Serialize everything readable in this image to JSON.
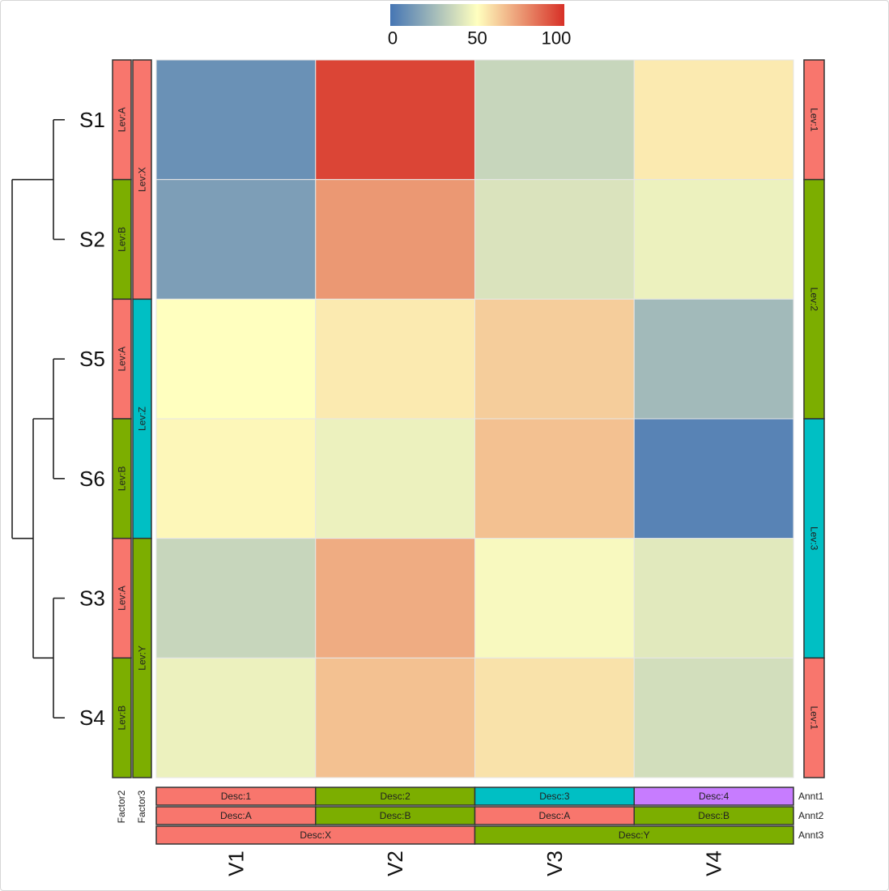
{
  "chart_data": {
    "type": "heatmap",
    "rows": [
      "S1",
      "S2",
      "S5",
      "S6",
      "S3",
      "S4"
    ],
    "columns": [
      "V1",
      "V2",
      "V3",
      "V4"
    ],
    "values": [
      [
        10,
        95,
        35,
        55
      ],
      [
        15,
        75,
        40,
        45
      ],
      [
        50,
        55,
        62,
        25
      ],
      [
        52,
        45,
        65,
        5
      ],
      [
        35,
        70,
        48,
        42
      ],
      [
        45,
        65,
        57,
        38
      ]
    ],
    "color_scale": {
      "min": 0,
      "mid": 50,
      "max": 100,
      "low_color": "#4575b4",
      "mid_color": "#ffffbf",
      "high_color": "#d73027",
      "ticks": [
        "0",
        "50",
        "100"
      ]
    },
    "row_annotations": {
      "Factor2": [
        "Lev:A",
        "Lev:B",
        "Lev:A",
        "Lev:B",
        "Lev:A",
        "Lev:B"
      ],
      "Factor3": [
        {
          "label": "Lev:X",
          "span": 2
        },
        {
          "label": "Lev:Z",
          "span": 2
        },
        {
          "label": "Lev:Y",
          "span": 2
        }
      ],
      "right": [
        {
          "label": "Lev:1",
          "span": 1
        },
        {
          "label": "Lev:2",
          "span": 2
        },
        {
          "label": "Lev:3",
          "span": 2
        },
        {
          "label": "Lev:1",
          "span": 1
        }
      ],
      "labels": [
        "Factor2",
        "Factor3"
      ]
    },
    "column_annotations": {
      "Annt1": [
        {
          "label": "Desc:1",
          "span": 1
        },
        {
          "label": "Desc:2",
          "span": 1
        },
        {
          "label": "Desc:3",
          "span": 1
        },
        {
          "label": "Desc:4",
          "span": 1
        }
      ],
      "Annt2": [
        {
          "label": "Desc:A",
          "span": 1
        },
        {
          "label": "Desc:B",
          "span": 1
        },
        {
          "label": "Desc:A",
          "span": 1
        },
        {
          "label": "Desc:B",
          "span": 1
        }
      ],
      "Annt3": [
        {
          "label": "Desc:X",
          "span": 2
        },
        {
          "label": "Desc:Y",
          "span": 2
        }
      ],
      "labels": [
        "Annt1",
        "Annt2",
        "Annt3"
      ]
    },
    "level_colors": {
      "Lev:A": "#f8766d",
      "Lev:B": "#7cae00",
      "Lev:X": "#f8766d",
      "Lev:Z": "#00bfc4",
      "Lev:Y": "#7cae00",
      "Lev:1": "#f8766d",
      "Lev:2": "#7cae00",
      "Lev:3": "#00bfc4",
      "Desc:1": "#f8766d",
      "Desc:2": "#7cae00",
      "Desc:3": "#00bfc4",
      "Desc:4": "#c77cff",
      "Desc:A": "#f8766d",
      "Desc:B": "#7cae00",
      "Desc:X": "#f8766d",
      "Desc:Y": "#7cae00"
    },
    "dendrogram": "((S1,S2),((S5,S6),(S3,S4)))"
  }
}
